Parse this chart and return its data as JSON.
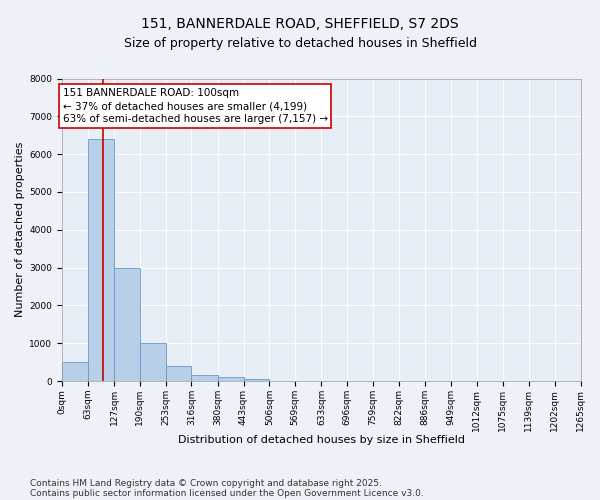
{
  "title_line1": "151, BANNERDALE ROAD, SHEFFIELD, S7 2DS",
  "title_line2": "Size of property relative to detached houses in Sheffield",
  "xlabel": "Distribution of detached houses by size in Sheffield",
  "ylabel": "Number of detached properties",
  "bin_edges": [
    0,
    63,
    127,
    190,
    253,
    316,
    380,
    443,
    506,
    569,
    633,
    696,
    759,
    822,
    886,
    949,
    1012,
    1075,
    1139,
    1202,
    1265
  ],
  "bar_heights": [
    500,
    6400,
    3000,
    1000,
    400,
    150,
    100,
    50,
    0,
    0,
    0,
    0,
    0,
    0,
    0,
    0,
    0,
    0,
    0,
    0
  ],
  "bar_color": "#b8cfe8",
  "bar_edge_color": "#6699cc",
  "property_size": 100,
  "property_line_color": "#cc0000",
  "annotation_text": "151 BANNERDALE ROAD: 100sqm\n← 37% of detached houses are smaller (4,199)\n63% of semi-detached houses are larger (7,157) →",
  "annotation_box_color": "#cc0000",
  "ylim": [
    0,
    8000
  ],
  "yticks": [
    0,
    1000,
    2000,
    3000,
    4000,
    5000,
    6000,
    7000,
    8000
  ],
  "footnote_line1": "Contains HM Land Registry data © Crown copyright and database right 2025.",
  "footnote_line2": "Contains public sector information licensed under the Open Government Licence v3.0.",
  "background_color": "#eef2f8",
  "plot_background_color": "#e8eef6",
  "grid_color": "#ffffff",
  "title_fontsize": 10,
  "subtitle_fontsize": 9,
  "axis_label_fontsize": 8,
  "tick_fontsize": 6.5,
  "annotation_fontsize": 7.5,
  "footnote_fontsize": 6.5
}
